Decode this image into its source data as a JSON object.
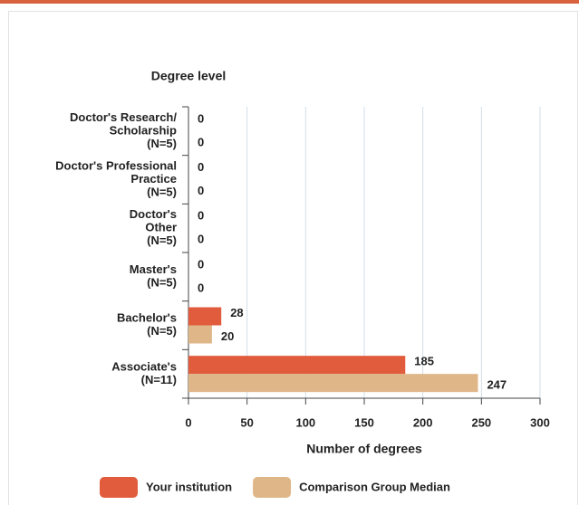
{
  "chart_data": {
    "type": "bar",
    "orientation": "horizontal",
    "title": "Degree level",
    "x_label": "Number of degrees",
    "categories": [
      [
        "Doctor's Research/",
        "Scholarship",
        "(N=5)"
      ],
      [
        "Doctor's Professional",
        "Practice",
        "(N=5)"
      ],
      [
        "Doctor's",
        "Other",
        "(N=5)"
      ],
      [
        "Master's",
        "(N=5)"
      ],
      [
        "Bachelor's",
        "(N=5)"
      ],
      [
        "Associate's",
        "(N=11)"
      ]
    ],
    "series": [
      {
        "name": "Your institution",
        "color": "#e05c3c",
        "values": [
          0,
          0,
          0,
          0,
          28,
          185
        ]
      },
      {
        "name": "Comparison Group Median",
        "color": "#dfb688",
        "values": [
          0,
          0,
          0,
          0,
          20,
          247
        ]
      }
    ],
    "xlim": [
      0,
      300
    ],
    "xticks": [
      0,
      50,
      100,
      150,
      200,
      250,
      300
    ],
    "grid": true
  }
}
